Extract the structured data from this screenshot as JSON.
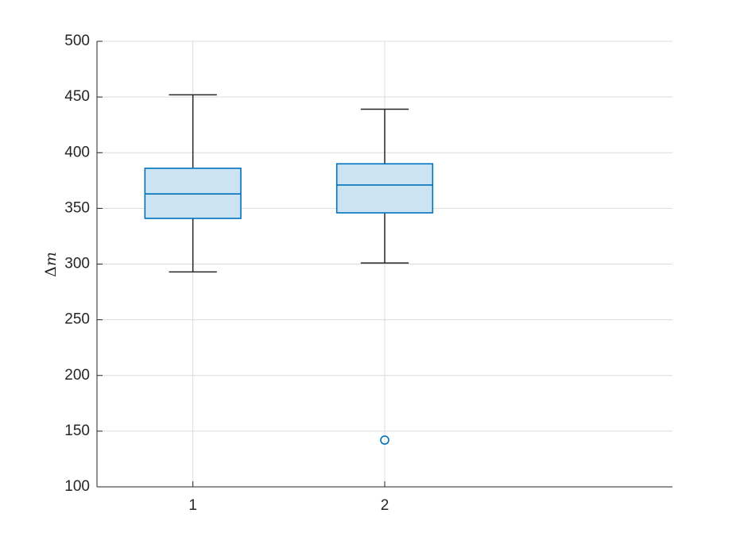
{
  "chart_data": {
    "type": "box",
    "title": "",
    "xlabel": "",
    "ylabel": "Δm",
    "ylabel_parts": {
      "symbol": "Δ",
      "variable": "m"
    },
    "categories": [
      "1",
      "2"
    ],
    "xlim": [
      0.5,
      3.5
    ],
    "ylim": [
      100,
      500
    ],
    "yticks": [
      100,
      150,
      200,
      250,
      300,
      350,
      400,
      450,
      500
    ],
    "yticklabels": [
      "100",
      "150",
      "200",
      "250",
      "300",
      "350",
      "400",
      "450",
      "500"
    ],
    "grid": true,
    "boxes": [
      {
        "category": "1",
        "whisker_low": 293,
        "q1": 341,
        "median": 363,
        "q3": 386,
        "whisker_high": 452,
        "outliers": []
      },
      {
        "category": "2",
        "whisker_low": 301,
        "q1": 346,
        "median": 371,
        "q3": 390,
        "whisker_high": 439,
        "outliers": [
          142
        ]
      }
    ],
    "colors": {
      "box_edge": "#0072BD",
      "box_fill": "#CCE3F2",
      "whisker": "#262626",
      "axis": "#262626",
      "grid": "#DCDCDC"
    }
  }
}
